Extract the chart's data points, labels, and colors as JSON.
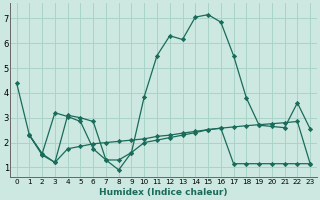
{
  "xlabel": "Humidex (Indice chaleur)",
  "bg_color": "#cce8e0",
  "line_color": "#1a6b5a",
  "grid_color": "#aad4c8",
  "xlim": [
    -0.5,
    23.5
  ],
  "ylim": [
    0.6,
    7.6
  ],
  "xticks": [
    0,
    1,
    2,
    3,
    4,
    5,
    6,
    7,
    8,
    9,
    10,
    11,
    12,
    13,
    14,
    15,
    16,
    17,
    18,
    19,
    20,
    21,
    22,
    23
  ],
  "yticks": [
    1,
    2,
    3,
    4,
    5,
    6,
    7
  ],
  "line1_x": [
    0,
    1,
    2,
    3,
    4,
    5,
    6,
    7,
    8,
    9,
    10,
    11,
    12,
    13,
    14,
    15,
    16,
    17,
    18,
    19,
    20,
    21,
    22,
    23
  ],
  "line1_y": [
    4.4,
    2.3,
    1.5,
    1.2,
    3.1,
    3.0,
    2.85,
    1.3,
    0.9,
    1.6,
    3.85,
    5.5,
    6.3,
    6.15,
    7.05,
    7.15,
    6.85,
    5.5,
    3.8,
    2.7,
    2.65,
    2.6,
    3.6,
    2.55
  ],
  "line2_x": [
    1,
    2,
    3,
    4,
    5,
    6,
    7,
    8,
    9,
    10,
    11,
    12,
    13,
    14,
    15,
    16,
    17,
    18,
    19,
    20,
    21,
    22,
    23
  ],
  "line2_y": [
    2.3,
    1.55,
    1.2,
    1.75,
    1.85,
    1.95,
    2.0,
    2.05,
    2.1,
    2.15,
    2.25,
    2.3,
    2.38,
    2.45,
    2.52,
    2.58,
    2.63,
    2.68,
    2.72,
    2.76,
    2.8,
    2.85,
    1.15
  ],
  "line3_x": [
    1,
    2,
    3,
    4,
    5,
    6,
    7,
    8,
    9,
    10,
    11,
    12,
    13,
    14,
    15,
    16,
    17,
    18,
    19,
    20,
    21,
    22,
    23
  ],
  "line3_y": [
    2.3,
    1.55,
    3.2,
    3.05,
    2.85,
    1.75,
    1.3,
    1.3,
    1.6,
    2.0,
    2.1,
    2.2,
    2.3,
    2.4,
    2.52,
    2.58,
    1.15,
    1.15,
    1.15,
    1.15,
    1.15,
    1.15,
    1.15
  ]
}
